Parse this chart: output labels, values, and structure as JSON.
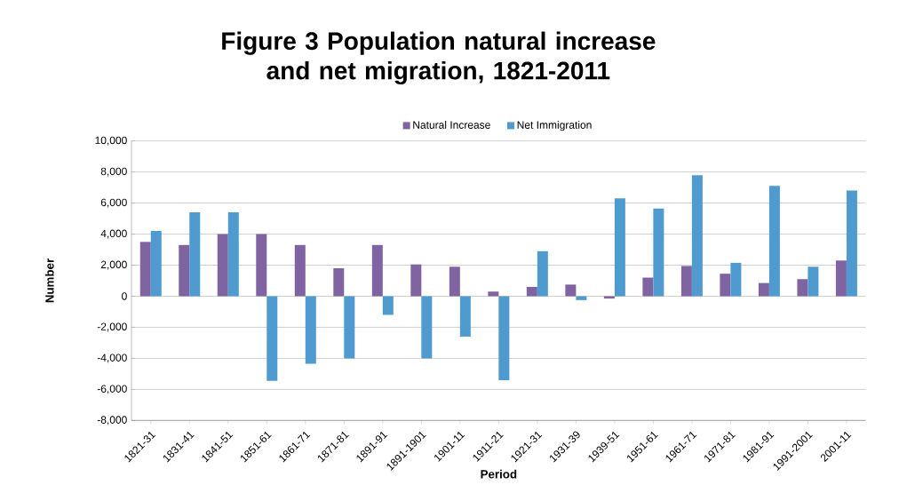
{
  "chart_data": {
    "type": "bar",
    "title": "Figure 3  Population natural increase and net migration, 1821-2011",
    "xlabel": "Period",
    "ylabel": "Number",
    "categories": [
      "1821-31",
      "1831-41",
      "1841-51",
      "1851-61",
      "1861-71",
      "1871-81",
      "1891-91",
      "1891-1901",
      "1901-11",
      "1911-21",
      "1921-31",
      "1931-39",
      "1939-51",
      "1951-61",
      "1961-71",
      "1971-81",
      "1981-91",
      "1991-2001",
      "2001-11"
    ],
    "series": [
      {
        "name": "Natural  Increase",
        "color": "#8064a2",
        "values": [
          3500,
          3300,
          4000,
          4000,
          3300,
          1800,
          3300,
          2050,
          1900,
          300,
          600,
          750,
          -150,
          1200,
          1950,
          1450,
          850,
          1100,
          2300
        ]
      },
      {
        "name": "Net Immigration",
        "color": "#4f9bd0",
        "values": [
          4200,
          5400,
          5400,
          -5450,
          -4350,
          -4000,
          -1200,
          -4000,
          -2600,
          -5400,
          2900,
          -250,
          6300,
          5650,
          7800,
          2150,
          7100,
          1900,
          6800
        ]
      }
    ],
    "ylim": [
      -8000,
      10000
    ],
    "yticks": [
      {
        "value": -8000,
        "label": "-8,000"
      },
      {
        "value": -6000,
        "label": "-6,000"
      },
      {
        "value": -4000,
        "label": "-4,000"
      },
      {
        "value": -2000,
        "label": "-2,000"
      },
      0,
      {
        "value": 2000,
        "label": "2,000"
      },
      {
        "value": 4000,
        "label": "4,000"
      },
      {
        "value": 6000,
        "label": "6,000"
      },
      {
        "value": 8000,
        "label": "8,000"
      },
      {
        "value": 10000,
        "label": "10,000"
      }
    ],
    "grid": "y",
    "legend": "top"
  }
}
